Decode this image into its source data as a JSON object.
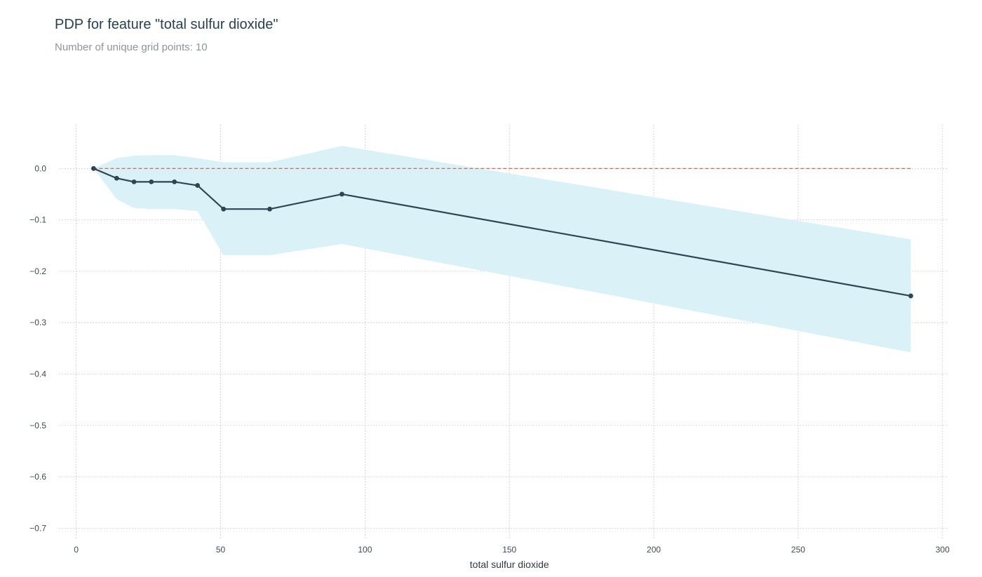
{
  "title": "PDP for feature \"total sulfur dioxide\"",
  "subtitle": "Number of unique grid points: 10",
  "chart_data": {
    "type": "line",
    "title": "PDP for feature \"total sulfur dioxide\"",
    "subtitle": "Number of unique grid points: 10",
    "xlabel": "total sulfur dioxide",
    "ylabel": "",
    "xlim": [
      -6,
      302
    ],
    "ylim": [
      -0.72,
      0.085
    ],
    "xticks": [
      0,
      50,
      100,
      150,
      200,
      250,
      300
    ],
    "yticks": [
      0.0,
      -0.1,
      -0.2,
      -0.3,
      -0.4,
      -0.5,
      -0.6,
      -0.7
    ],
    "xtick_labels": [
      "0",
      "50",
      "100",
      "150",
      "200",
      "250",
      "300"
    ],
    "ytick_labels": [
      "0.0",
      "−0.1",
      "−0.2",
      "−0.3",
      "−0.4",
      "−0.5",
      "−0.6",
      "−0.7"
    ],
    "grid": true,
    "series": [
      {
        "name": "pdp",
        "x": [
          6,
          14,
          20,
          26,
          34,
          42,
          51,
          67,
          92,
          289
        ],
        "y": [
          0.0,
          -0.019,
          -0.026,
          -0.026,
          -0.026,
          -0.033,
          -0.079,
          -0.079,
          -0.05,
          -0.248
        ],
        "color": "#2f4550"
      }
    ],
    "band": {
      "name": "confidence band",
      "x": [
        6,
        14,
        20,
        26,
        34,
        42,
        51,
        67,
        92,
        289
      ],
      "upper": [
        0.0,
        0.02,
        0.025,
        0.026,
        0.026,
        0.02,
        0.012,
        0.012,
        0.044,
        -0.138
      ],
      "lower": [
        0.0,
        -0.06,
        -0.077,
        -0.079,
        -0.079,
        -0.083,
        -0.169,
        -0.169,
        -0.147,
        -0.358
      ],
      "color": "#dbf1f8"
    },
    "reference_line": {
      "y": 0.0,
      "from_x": 6,
      "to_x": 289,
      "color": "#c0604a"
    }
  }
}
